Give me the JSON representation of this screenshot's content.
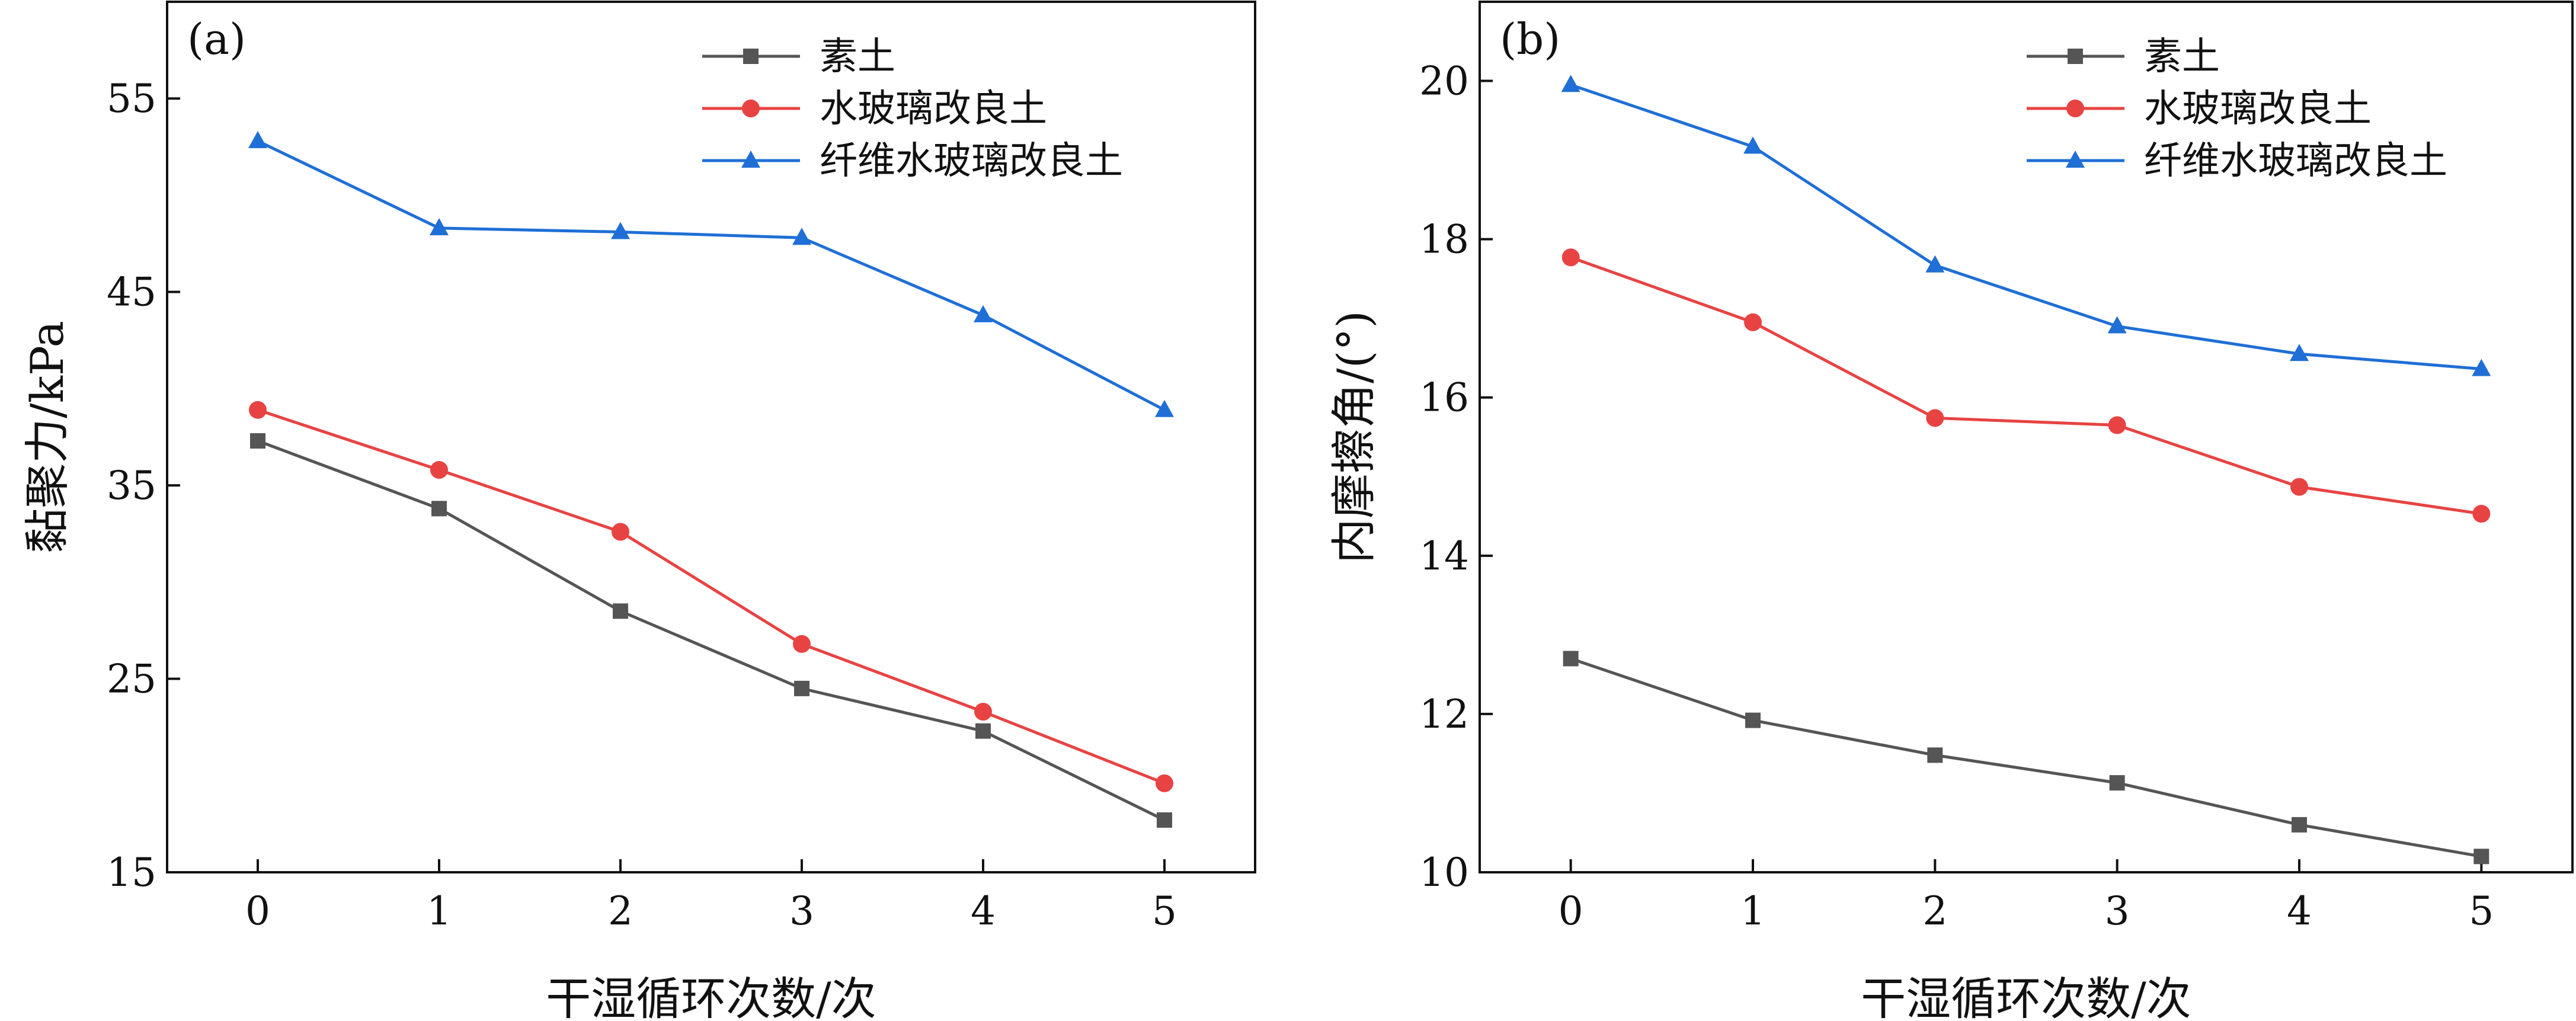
{
  "chart_data": [
    {
      "type": "line",
      "panel_label": "(a)",
      "xlabel": "干湿循环次数/次",
      "ylabel": "黏聚力/kPa",
      "x": [
        0,
        1,
        2,
        3,
        4,
        5
      ],
      "xlim": [
        -0.5,
        5.5
      ],
      "ylim": [
        15,
        60
      ],
      "yticks": [
        15,
        25,
        35,
        45,
        55
      ],
      "xticks": [
        0,
        1,
        2,
        3,
        4,
        5
      ],
      "legend_position": "top-right",
      "series": [
        {
          "name": "素土",
          "color": "#555555",
          "marker": "square",
          "values": [
            37.3,
            33.8,
            28.5,
            24.5,
            22.3,
            17.7
          ]
        },
        {
          "name": "水玻璃改良土",
          "color": "#e84343",
          "marker": "circle",
          "values": [
            38.9,
            35.8,
            32.6,
            26.8,
            23.3,
            19.6
          ]
        },
        {
          "name": "纤维水玻璃改良土",
          "color": "#1f6fd6",
          "marker": "triangle",
          "values": [
            52.8,
            48.3,
            48.1,
            47.8,
            43.8,
            38.9
          ]
        }
      ]
    },
    {
      "type": "line",
      "panel_label": "(b)",
      "xlabel": "干湿循环次数/次",
      "ylabel": "内摩擦角/(°)",
      "x": [
        0,
        1,
        2,
        3,
        4,
        5
      ],
      "xlim": [
        -0.5,
        5.5
      ],
      "ylim": [
        10,
        21
      ],
      "yticks": [
        10,
        12,
        14,
        16,
        18,
        20
      ],
      "xticks": [
        0,
        1,
        2,
        3,
        4,
        5
      ],
      "legend_position": "top-right",
      "series": [
        {
          "name": "素土",
          "color": "#555555",
          "marker": "square",
          "values": [
            12.7,
            11.92,
            11.48,
            11.13,
            10.6,
            10.2
          ]
        },
        {
          "name": "水玻璃改良土",
          "color": "#e84343",
          "marker": "circle",
          "values": [
            17.77,
            16.95,
            15.74,
            15.65,
            14.87,
            14.53
          ]
        },
        {
          "name": "纤维水玻璃改良土",
          "color": "#1f6fd6",
          "marker": "triangle",
          "values": [
            19.95,
            19.17,
            17.67,
            16.9,
            16.55,
            16.36
          ]
        }
      ]
    }
  ]
}
